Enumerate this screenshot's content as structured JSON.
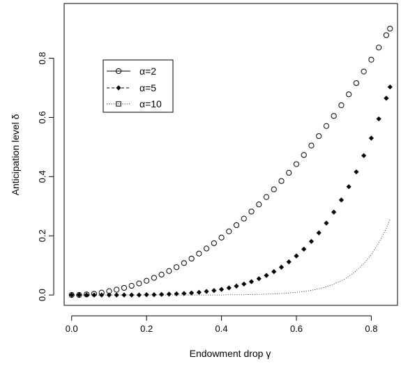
{
  "chart_data": {
    "type": "scatter",
    "xlabel": "Endowment drop γ",
    "ylabel": "Anticipation level  δ",
    "xlim": [
      -0.02,
      0.87
    ],
    "ylim": [
      -0.035,
      0.985
    ],
    "x_ticks": [
      "0.0",
      "0.2",
      "0.4",
      "0.6",
      "0.8"
    ],
    "y_ticks": [
      "0.0",
      "0.2",
      "0.4",
      "0.6",
      "0.8"
    ],
    "legend_position": "upper-left",
    "grid": false,
    "x": [
      0.0,
      0.02,
      0.04,
      0.06,
      0.08,
      0.1,
      0.12,
      0.14,
      0.16,
      0.18,
      0.2,
      0.22,
      0.24,
      0.26,
      0.28,
      0.3,
      0.32,
      0.34,
      0.36,
      0.38,
      0.4,
      0.42,
      0.44,
      0.46,
      0.48,
      0.5,
      0.52,
      0.54,
      0.56,
      0.58,
      0.6,
      0.62,
      0.64,
      0.66,
      0.68,
      0.7,
      0.72,
      0.74,
      0.76,
      0.78,
      0.8,
      0.82,
      0.84,
      0.85
    ],
    "series": [
      {
        "name": "α=2",
        "marker": "open-circle",
        "line": "none",
        "values": [
          0.0,
          0.0,
          0.002,
          0.004,
          0.008,
          0.013,
          0.018,
          0.024,
          0.031,
          0.039,
          0.048,
          0.058,
          0.069,
          0.081,
          0.094,
          0.108,
          0.123,
          0.14,
          0.157,
          0.175,
          0.194,
          0.215,
          0.236,
          0.258,
          0.282,
          0.306,
          0.331,
          0.357,
          0.385,
          0.413,
          0.442,
          0.473,
          0.505,
          0.537,
          0.571,
          0.605,
          0.641,
          0.678,
          0.716,
          0.755,
          0.795,
          0.836,
          0.878,
          0.9
        ]
      },
      {
        "name": "α=5",
        "marker": "filled-diamond",
        "line": "dashed",
        "values": [
          0.0,
          0.0,
          0.0,
          0.0,
          0.0,
          0.0,
          0.0,
          0.0,
          0.0,
          0.0,
          0.001,
          0.001,
          0.002,
          0.003,
          0.004,
          0.005,
          0.007,
          0.009,
          0.012,
          0.015,
          0.019,
          0.024,
          0.03,
          0.037,
          0.045,
          0.055,
          0.066,
          0.079,
          0.094,
          0.112,
          0.132,
          0.155,
          0.181,
          0.21,
          0.243,
          0.28,
          0.321,
          0.366,
          0.416,
          0.471,
          0.53,
          0.595,
          0.665,
          0.703
        ]
      },
      {
        "name": "α=10",
        "marker": "open-square",
        "line": "dotted",
        "values": [
          0.0,
          0.0,
          0.0,
          0.0,
          0.0,
          0.0,
          0.0,
          0.0,
          0.0,
          0.0,
          0.0,
          0.0,
          0.0,
          0.0,
          0.0,
          0.0,
          0.0,
          0.0,
          0.0,
          0.0,
          0.0,
          0.001,
          0.001,
          0.001,
          0.002,
          0.002,
          0.003,
          0.004,
          0.005,
          0.007,
          0.009,
          0.012,
          0.016,
          0.021,
          0.028,
          0.037,
          0.048,
          0.063,
          0.082,
          0.106,
          0.137,
          0.176,
          0.225,
          0.255
        ]
      }
    ]
  }
}
